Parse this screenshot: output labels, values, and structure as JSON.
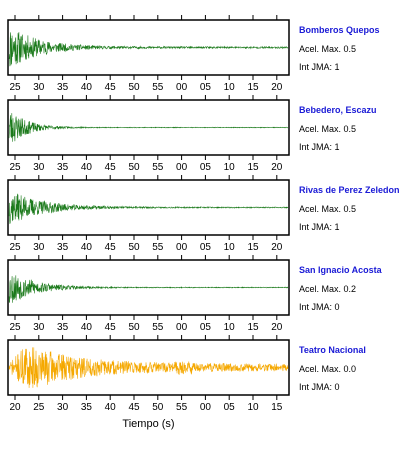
{
  "chart_data": {
    "type": "line",
    "xlabel": "Tiempo (s)",
    "panels": [
      {
        "name": "Bomberos Quepos",
        "accel_label": "Acel. Max. 0.5",
        "jma_label": "Int JMA: 1",
        "accel": 0.5,
        "jma": 1,
        "color": "#1b7a1b",
        "ticks": [
          "25",
          "30",
          "35",
          "40",
          "45",
          "50",
          "55",
          "00",
          "05",
          "10",
          "15",
          "20"
        ],
        "peak": 0.9,
        "decay": 0.035,
        "tail": 0.04,
        "seed": 11
      },
      {
        "name": "Bebedero, Escazu",
        "accel_label": "Acel. Max. 0.5",
        "jma_label": "Int JMA: 1",
        "accel": 0.5,
        "jma": 1,
        "color": "#1b7a1b",
        "ticks": [
          "25",
          "30",
          "35",
          "40",
          "45",
          "50",
          "55",
          "00",
          "05",
          "10",
          "15",
          "20"
        ],
        "peak": 0.85,
        "decay": 0.06,
        "tail": 0.015,
        "seed": 23
      },
      {
        "name": "Rivas de Perez Zeledon",
        "accel_label": "Acel. Max. 0.5",
        "jma_label": "Int JMA: 1",
        "accel": 0.5,
        "jma": 1,
        "color": "#1b7a1b",
        "ticks": [
          "25",
          "30",
          "35",
          "40",
          "45",
          "50",
          "55",
          "00",
          "05",
          "10",
          "15",
          "20"
        ],
        "peak": 0.7,
        "decay": 0.03,
        "tail": 0.03,
        "seed": 37
      },
      {
        "name": "San Ignacio Acosta",
        "accel_label": "Acel. Max. 0.2",
        "jma_label": "Int JMA: 0",
        "accel": 0.2,
        "jma": 0,
        "color": "#1b7a1b",
        "ticks": [
          "25",
          "30",
          "35",
          "40",
          "45",
          "50",
          "55",
          "00",
          "05",
          "10",
          "15",
          "20"
        ],
        "peak": 0.75,
        "decay": 0.04,
        "tail": 0.02,
        "seed": 53
      },
      {
        "name": "Teatro Nacional",
        "accel_label": "Acel. Max. 0.0",
        "jma_label": "Int JMA: 0",
        "accel": 0.0,
        "jma": 0,
        "color": "#f5a800",
        "ticks": [
          "20",
          "25",
          "30",
          "35",
          "40",
          "45",
          "50",
          "55",
          "00",
          "05",
          "10",
          "15"
        ],
        "peak": 0.85,
        "decay": 0.02,
        "tail": 0.18,
        "seed": 71
      }
    ]
  }
}
